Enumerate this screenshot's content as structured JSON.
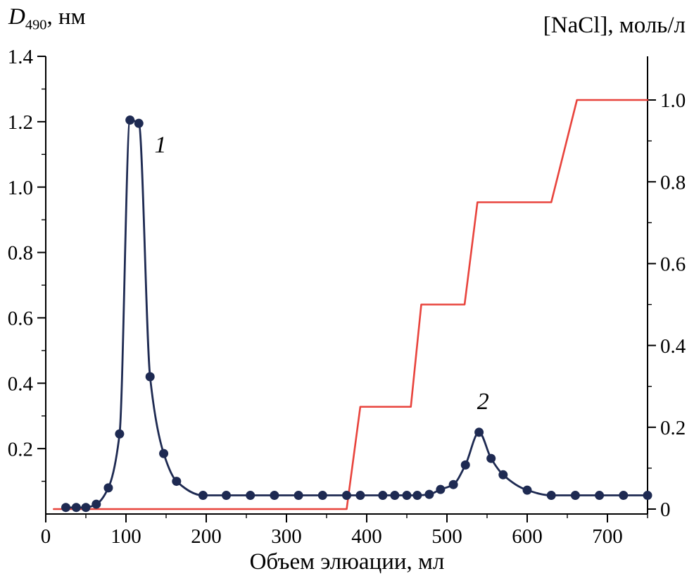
{
  "figure": {
    "left_axis_title": {
      "symbol": "D",
      "subscript": "490",
      "suffix": ", нм"
    },
    "right_axis_title": "[NaCl], моль/л",
    "x_axis_title": "Объем элюации, мл"
  },
  "chart_data": {
    "type": "line",
    "title": "",
    "xlabel": "Объем элюации, мл",
    "ylabel_left": "D490, нм",
    "ylabel_right": "[NaCl], моль/л",
    "grid": false,
    "legend": "none",
    "x_axis": {
      "range": [
        0,
        750
      ],
      "major_ticks": [
        0,
        100,
        200,
        300,
        400,
        500,
        600,
        700
      ],
      "major_tick_labels": [
        "0",
        "100",
        "200",
        "300",
        "400",
        "500",
        "600",
        "700"
      ],
      "minor_ticks": [
        50,
        150,
        250,
        350,
        450,
        550,
        650,
        750
      ]
    },
    "left_y_axis": {
      "range": [
        0,
        1.4
      ],
      "major_ticks": [
        0.2,
        0.4,
        0.6,
        0.8,
        1.0,
        1.2,
        1.4
      ],
      "major_tick_labels": [
        "0.2",
        "0.4",
        "0.6",
        "0.8",
        "1.0",
        "1.2",
        "1.4"
      ],
      "minor_ticks": [
        0.1,
        0.3,
        0.5,
        0.7,
        0.9,
        1.1,
        1.3
      ]
    },
    "right_y_axis": {
      "range": [
        0,
        1.0
      ],
      "major_ticks": [
        0,
        0.2,
        0.4,
        0.6,
        0.8,
        1.0
      ],
      "major_tick_labels": [
        "0",
        "0.2",
        "0.4",
        "0.6",
        "0.8",
        "1.0"
      ],
      "minor_ticks": [
        0.1,
        0.3,
        0.5,
        0.7,
        0.9
      ]
    },
    "series": [
      {
        "name": "nacl-step-gradient",
        "axis": "right",
        "color": "#e8433c",
        "marker": "none",
        "smooth": false,
        "line_width": 2.6,
        "points": [
          [
            10,
            0
          ],
          [
            375,
            0
          ],
          [
            392,
            0.25
          ],
          [
            455,
            0.25
          ],
          [
            468,
            0.5
          ],
          [
            522,
            0.5
          ],
          [
            538,
            0.75
          ],
          [
            630,
            0.75
          ],
          [
            662,
            1.0
          ],
          [
            750,
            1.0
          ]
        ]
      },
      {
        "name": "elution-profile-D490",
        "axis": "left",
        "color": "#1e2a52",
        "marker": "circle",
        "marker_radius": 6.5,
        "smooth": true,
        "line_width": 2.8,
        "points": [
          [
            25,
            0.02
          ],
          [
            38,
            0.02
          ],
          [
            50,
            0.02
          ],
          [
            63,
            0.03
          ],
          [
            78,
            0.08
          ],
          [
            92,
            0.245
          ],
          [
            105,
            1.205
          ],
          [
            116,
            1.195
          ],
          [
            130,
            0.42
          ],
          [
            147,
            0.185
          ],
          [
            163,
            0.1
          ],
          [
            196,
            0.057
          ],
          [
            225,
            0.057
          ],
          [
            255,
            0.057
          ],
          [
            285,
            0.057
          ],
          [
            315,
            0.057
          ],
          [
            345,
            0.057
          ],
          [
            375,
            0.057
          ],
          [
            392,
            0.057
          ],
          [
            420,
            0.057
          ],
          [
            435,
            0.057
          ],
          [
            450,
            0.057
          ],
          [
            463,
            0.057
          ],
          [
            478,
            0.06
          ],
          [
            492,
            0.075
          ],
          [
            508,
            0.09
          ],
          [
            523,
            0.15
          ],
          [
            540,
            0.25
          ],
          [
            555,
            0.17
          ],
          [
            570,
            0.12
          ],
          [
            600,
            0.073
          ],
          [
            630,
            0.057
          ],
          [
            660,
            0.057
          ],
          [
            690,
            0.057
          ],
          [
            720,
            0.057
          ],
          [
            750,
            0.057
          ]
        ]
      }
    ],
    "annotations": [
      {
        "text": "1",
        "x": 143,
        "y": 1.13,
        "axis": "left"
      },
      {
        "text": "2",
        "x": 545,
        "y": 0.345,
        "axis": "left"
      }
    ]
  }
}
